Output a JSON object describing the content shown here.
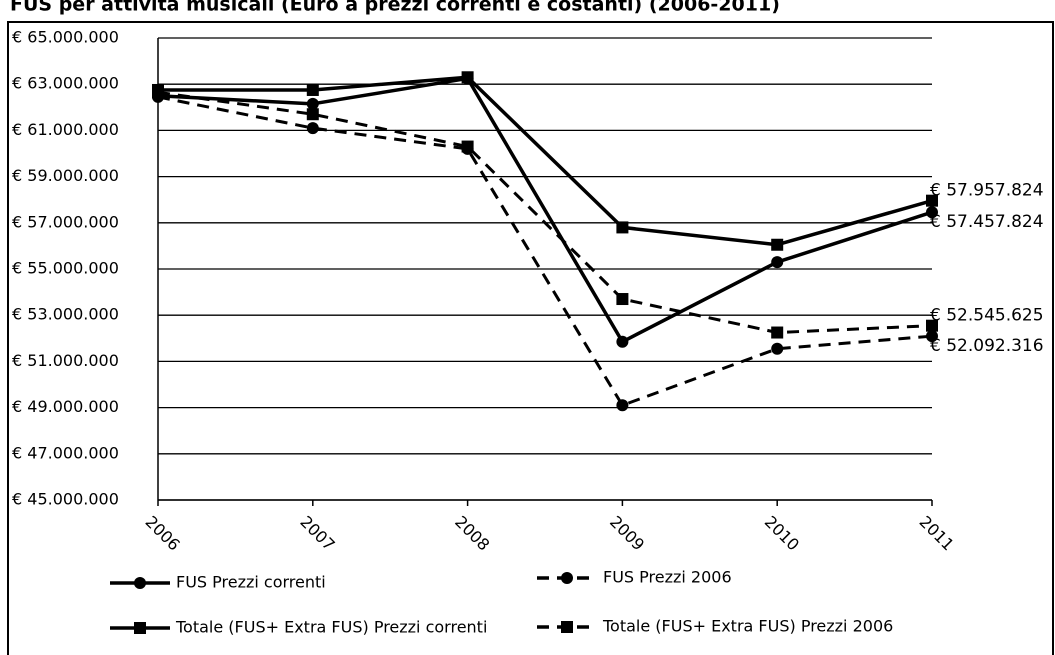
{
  "chart_data": {
    "type": "line",
    "title": "FUS per attività musicali (Euro a prezzi correnti e costanti) (2006-2011)",
    "categories": [
      "2006",
      "2007",
      "2008",
      "2009",
      "2010",
      "2011"
    ],
    "ylim": [
      45000000,
      65000000
    ],
    "yticks": [
      {
        "value": 45000000,
        "label": "€ 45.000.000"
      },
      {
        "value": 47000000,
        "label": "€ 47.000.000"
      },
      {
        "value": 49000000,
        "label": "€ 49.000.000"
      },
      {
        "value": 51000000,
        "label": "€ 51.000.000"
      },
      {
        "value": 53000000,
        "label": "€ 53.000.000"
      },
      {
        "value": 55000000,
        "label": "€ 55.000.000"
      },
      {
        "value": 57000000,
        "label": "€ 57.000.000"
      },
      {
        "value": 59000000,
        "label": "€ 59.000.000"
      },
      {
        "value": 61000000,
        "label": "€ 61.000.000"
      },
      {
        "value": 63000000,
        "label": "€ 63.000.000"
      },
      {
        "value": 65000000,
        "label": "€ 65.000.000"
      }
    ],
    "grid": true,
    "series": [
      {
        "name": "FUS Prezzi correnti",
        "color": "#000000",
        "dash": false,
        "marker": "circle",
        "values": [
          62500000,
          62150000,
          63250000,
          51850000,
          55300000,
          57457824
        ],
        "value_labels": [
          null,
          null,
          null,
          null,
          null,
          "€ 57.457.824"
        ]
      },
      {
        "name": "FUS Prezzi 2006",
        "color": "#000000",
        "dash": true,
        "marker": "circle",
        "values": [
          62450000,
          61100000,
          60200000,
          49100000,
          51550000,
          52092316
        ],
        "value_labels": [
          null,
          null,
          null,
          null,
          null,
          "€ 52.092.316"
        ]
      },
      {
        "name": "Totale (FUS+ Extra FUS) Prezzi correnti",
        "color": "#000000",
        "dash": false,
        "marker": "square",
        "values": [
          62750000,
          62750000,
          63300000,
          56800000,
          56050000,
          57957824
        ],
        "value_labels": [
          null,
          null,
          null,
          null,
          null,
          "€ 57.957.824"
        ]
      },
      {
        "name": "Totale (FUS+ Extra FUS) Prezzi 2006",
        "color": "#000000",
        "dash": true,
        "marker": "square",
        "values": [
          62650000,
          61700000,
          60300000,
          53700000,
          52250000,
          52545625
        ],
        "value_labels": [
          null,
          null,
          null,
          null,
          null,
          "€ 52.545.625"
        ]
      }
    ],
    "legend": "bottom"
  }
}
